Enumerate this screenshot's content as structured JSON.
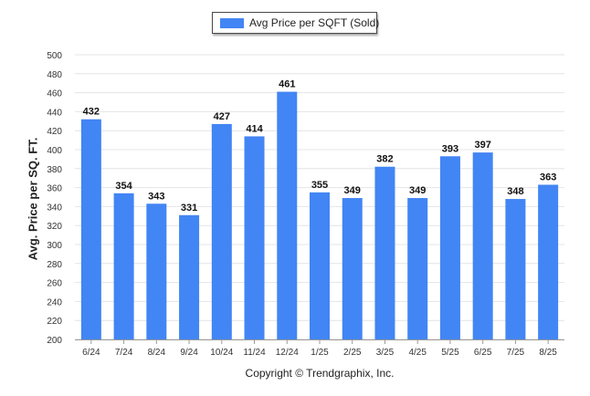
{
  "chart_data": {
    "type": "bar",
    "title": "",
    "xlabel": "",
    "ylabel": "Avg. Price per SQ. FT.",
    "ylim": [
      200,
      500
    ],
    "y_ticks": [
      200,
      220,
      240,
      260,
      280,
      300,
      320,
      340,
      360,
      380,
      400,
      420,
      440,
      460,
      480,
      500
    ],
    "grid": true,
    "legend_position": "top-center",
    "categories": [
      "6/24",
      "7/24",
      "8/24",
      "9/24",
      "10/24",
      "11/24",
      "12/24",
      "1/25",
      "2/25",
      "3/25",
      "4/25",
      "5/25",
      "6/25",
      "7/25",
      "8/25"
    ],
    "series": [
      {
        "name": "Avg Price per SQFT (Sold)",
        "color": "#4285f4",
        "values": [
          432,
          354,
          343,
          331,
          427,
          414,
          461,
          355,
          349,
          382,
          349,
          393,
          397,
          348,
          363
        ]
      }
    ]
  },
  "footer": {
    "copyright": "Copyright © Trendgraphix, Inc."
  }
}
